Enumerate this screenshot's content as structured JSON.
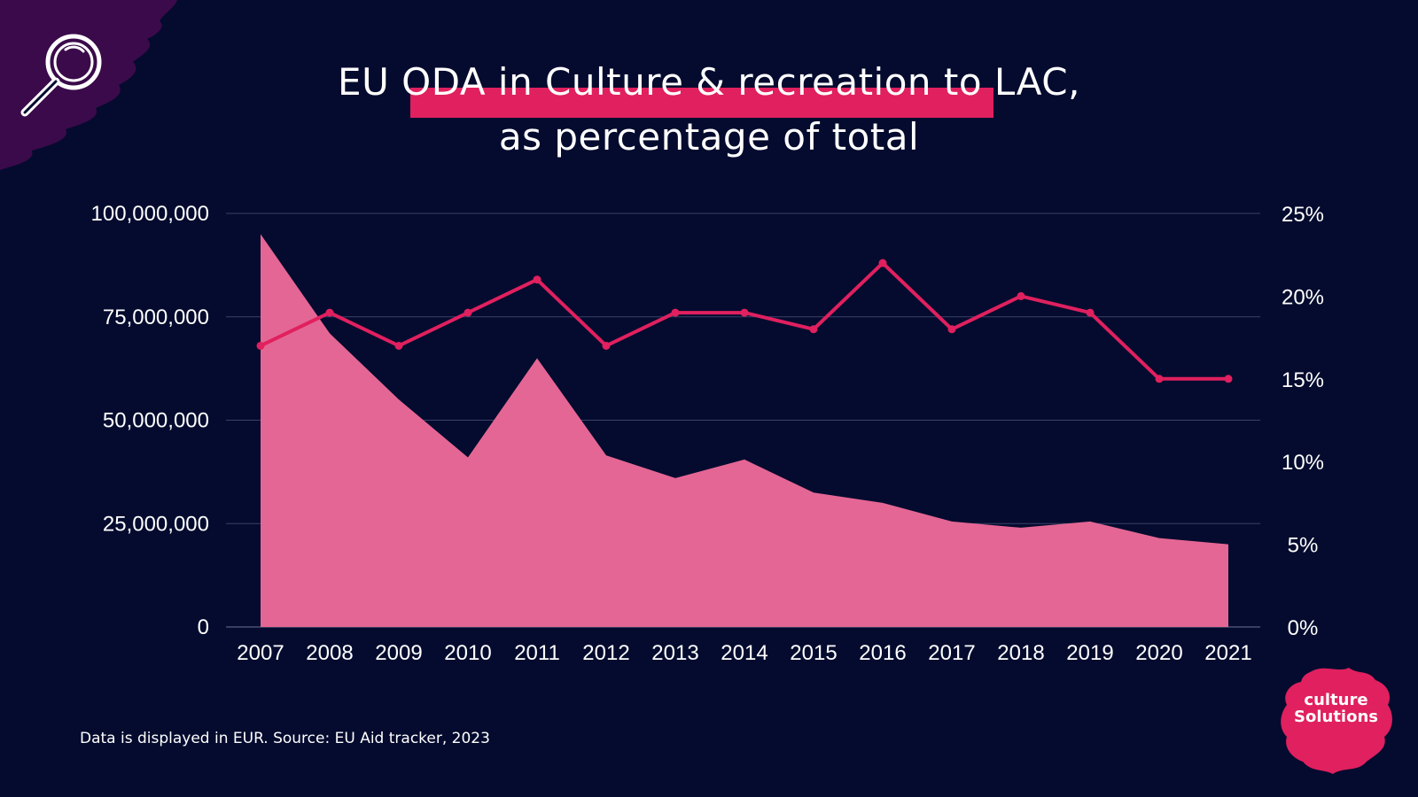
{
  "title": {
    "line1": "EU ODA in Culture & recreation to LAC,",
    "line2": "as percentage of total"
  },
  "footnote": "Data is displayed in EUR. Source: EU Aid tracker, 2023",
  "logo": {
    "line1": "culture",
    "line2": "Solutions"
  },
  "icons": {
    "top_left": "search-icon"
  },
  "colors": {
    "background": "#040b2e",
    "area": "#e46694",
    "line": "#e0205f",
    "gridline": "#3a4266",
    "corner_splash": "#3b0a4a"
  },
  "chart_data": {
    "type": "area",
    "title": "EU ODA in Culture & recreation to LAC, as percentage of total",
    "x": [
      "2007",
      "2008",
      "2009",
      "2010",
      "2011",
      "2012",
      "2013",
      "2014",
      "2015",
      "2016",
      "2017",
      "2018",
      "2019",
      "2020",
      "2021"
    ],
    "series": [
      {
        "type": "area",
        "axis": "left",
        "values": [
          95000000,
          71000000,
          55000000,
          41000000,
          65000000,
          41500000,
          36000000,
          40500000,
          32500000,
          30000000,
          25500000,
          24000000,
          25500000,
          21500000,
          20000000
        ]
      },
      {
        "type": "line",
        "axis": "right",
        "values": [
          17,
          19,
          17,
          19,
          21,
          17,
          19,
          19,
          18,
          22,
          18,
          20,
          19,
          15,
          15
        ]
      }
    ],
    "y_left": {
      "ylim": [
        0,
        100000000
      ],
      "ticks": [
        "0",
        "25,000,000",
        "50,000,000",
        "75,000,000",
        "100,000,000"
      ]
    },
    "y_right": {
      "ylim": [
        0,
        25
      ],
      "ticks": [
        "0%",
        "5%",
        "10%",
        "15%",
        "20%",
        "25%"
      ]
    },
    "grid": true
  }
}
